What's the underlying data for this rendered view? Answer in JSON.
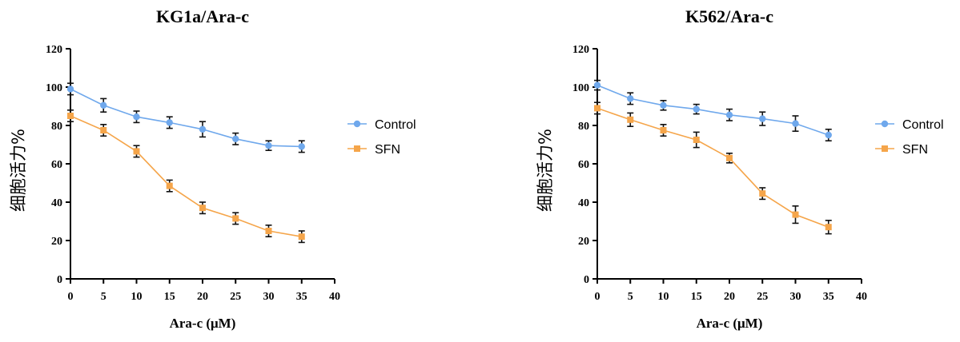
{
  "chart_data": [
    {
      "type": "line",
      "title": "KG1a/Ara-c",
      "xlabel": "Ara-c (μM)",
      "ylabel": "细胞活力%",
      "xlim": [
        0,
        40
      ],
      "ylim": [
        0,
        120
      ],
      "xticks": [
        0,
        5,
        10,
        15,
        20,
        25,
        30,
        35,
        40
      ],
      "yticks": [
        0,
        20,
        40,
        60,
        80,
        100,
        120
      ],
      "x": [
        0,
        5,
        10,
        15,
        20,
        25,
        30,
        35
      ],
      "legend_position": "right",
      "grid": false,
      "series": [
        {
          "name": "Control",
          "color": "#6fa8ec",
          "marker": "circle",
          "values": [
            99,
            90.5,
            84.5,
            81.5,
            78,
            73,
            69.5,
            69
          ],
          "errors": [
            3,
            3.5,
            3,
            3,
            4,
            3,
            2.5,
            3
          ]
        },
        {
          "name": "SFN",
          "color": "#f5a54a",
          "marker": "square",
          "values": [
            85,
            77.5,
            66.5,
            48.5,
            37,
            31.5,
            25,
            22
          ],
          "errors": [
            3,
            3,
            3,
            3,
            3,
            3,
            3,
            3
          ]
        }
      ]
    },
    {
      "type": "line",
      "title": "K562/Ara-c",
      "xlabel": "Ara-c (μM)",
      "ylabel": "细胞活力%",
      "xlim": [
        0,
        40
      ],
      "ylim": [
        0,
        120
      ],
      "xticks": [
        0,
        5,
        10,
        15,
        20,
        25,
        30,
        35,
        40
      ],
      "yticks": [
        0,
        20,
        40,
        60,
        80,
        100,
        120
      ],
      "x": [
        0,
        5,
        10,
        15,
        20,
        25,
        30,
        35
      ],
      "legend_position": "right",
      "grid": false,
      "series": [
        {
          "name": "Control",
          "color": "#6fa8ec",
          "marker": "circle",
          "values": [
            101,
            94,
            90.5,
            88.5,
            85.5,
            83.5,
            81,
            75
          ],
          "errors": [
            2.5,
            3,
            2.5,
            2.5,
            3,
            3.5,
            4,
            3
          ]
        },
        {
          "name": "SFN",
          "color": "#f5a54a",
          "marker": "square",
          "values": [
            89,
            83,
            77.5,
            72.5,
            63,
            44.5,
            33.5,
            27
          ],
          "errors": [
            3,
            3.5,
            3,
            4,
            2.5,
            3,
            4.5,
            3.5
          ]
        }
      ]
    }
  ]
}
